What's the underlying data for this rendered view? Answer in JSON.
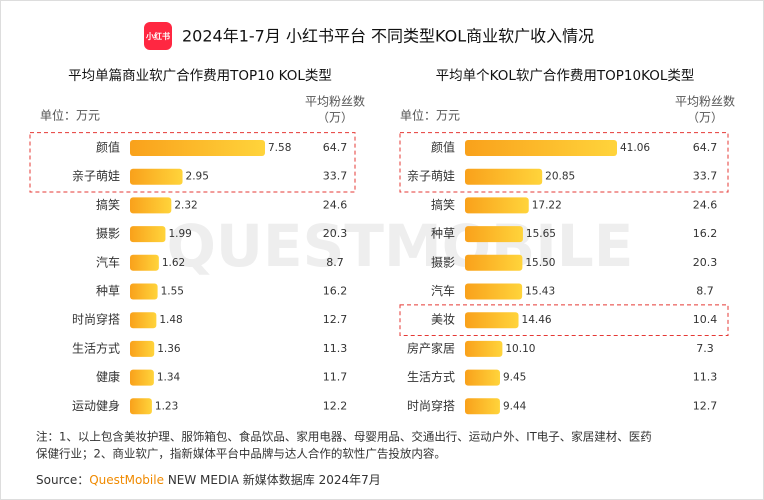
{
  "header": {
    "logo": "小红书",
    "title": "2024年1-7月 小红书平台 不同类型KOL商业软广收入情况",
    "watermark": "QUESTMOBILE"
  },
  "chart_data": [
    {
      "type": "bar",
      "orientation": "horizontal",
      "title": "平均单篇商业软广合作费用TOP10 KOL类型",
      "unit": "单位：万元",
      "fans_header": [
        "平均粉丝数",
        "（万）"
      ],
      "categories": [
        "颜值",
        "亲子萌娃",
        "搞笑",
        "摄影",
        "汽车",
        "种草",
        "时尚穿搭",
        "生活方式",
        "健康",
        "运动健身"
      ],
      "values": [
        7.58,
        2.95,
        2.32,
        1.99,
        1.62,
        1.55,
        1.48,
        1.36,
        1.34,
        1.23
      ],
      "fans": [
        64.7,
        33.7,
        24.6,
        20.3,
        8.7,
        16.2,
        12.7,
        11.3,
        11.7,
        12.2
      ],
      "color": "#fbb41f"
    },
    {
      "type": "bar",
      "orientation": "horizontal",
      "title": "平均单个KOL软广合作费用TOP10KOL类型",
      "unit": "单位：万元",
      "fans_header": [
        "平均粉丝数",
        "（万）"
      ],
      "categories": [
        "颜值",
        "亲子萌娃",
        "搞笑",
        "种草",
        "摄影",
        "汽车",
        "美妆",
        "房产家居",
        "生活方式",
        "时尚穿搭"
      ],
      "values": [
        41.06,
        20.85,
        17.22,
        15.65,
        15.5,
        15.43,
        14.46,
        10.1,
        9.45,
        9.44
      ],
      "value_labels": [
        "41.06",
        "20.85",
        "17.22",
        "15.65",
        "15.50",
        "15.43",
        "14.46",
        "10.10",
        "9.45",
        "9.44"
      ],
      "fans": [
        64.7,
        33.7,
        24.6,
        16.2,
        20.3,
        8.7,
        10.4,
        7.3,
        11.3,
        12.7
      ],
      "color": "#fbb41f"
    }
  ],
  "footer": {
    "note": [
      "注：1、以上包含美妆护理、服饰箱包、食品饮品、家用电器、母婴用品、交通出行、运动户外、IT电子、家居建材、医药",
      "保健行业；2、商业软广，指新媒体平台中品牌与达人合作的软性广告投放内容。"
    ],
    "source_prefix": "Source：",
    "source_brand": "QuestMobile",
    "source_rest": "NEW MEDIA 新媒体数据库 2024年7月"
  }
}
